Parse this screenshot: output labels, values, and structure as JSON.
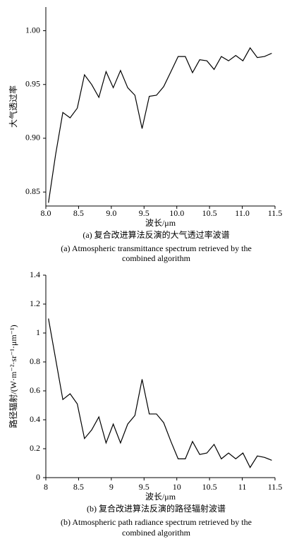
{
  "chart_data": [
    {
      "type": "line",
      "ylabel": "大气透过率",
      "xlabel": "波长/μm",
      "caption": [
        "(a) 复合改进算法反演的大气透过率波谱",
        "(a) Atmospheric transmittance spectrum retrieved by the",
        "combined algorithm"
      ],
      "xlim": [
        8,
        11.5
      ],
      "xticks": [
        {
          "value": 8,
          "label": "8.0"
        },
        8.5,
        {
          "value": 9,
          "label": "9.0"
        },
        9.5,
        {
          "value": 10,
          "label": "10.0"
        },
        10.5,
        {
          "value": 11,
          "label": "11.0"
        },
        11.5
      ],
      "ylim": [
        0.837,
        1.022
      ],
      "yticks": [
        0.85,
        {
          "value": 0.9,
          "label": "0.90"
        },
        0.95,
        {
          "value": 1,
          "label": "1.00"
        }
      ],
      "grid": false,
      "color": "#000000",
      "x": [
        8.04,
        8.15,
        8.26,
        8.37,
        8.48,
        8.59,
        8.7,
        8.81,
        8.92,
        9.03,
        9.14,
        9.25,
        9.36,
        9.47,
        9.58,
        9.69,
        9.8,
        9.91,
        10.02,
        10.13,
        10.24,
        10.35,
        10.46,
        10.57,
        10.68,
        10.79,
        10.9,
        11.01,
        11.12,
        11.23,
        11.34,
        11.45
      ],
      "values": [
        0.84,
        0.885,
        0.924,
        0.919,
        0.928,
        0.959,
        0.95,
        0.938,
        0.962,
        0.947,
        0.963,
        0.947,
        0.94,
        0.909,
        0.939,
        0.94,
        0.948,
        0.962,
        0.976,
        0.976,
        0.961,
        0.973,
        0.972,
        0.964,
        0.976,
        0.972,
        0.977,
        0.972,
        0.984,
        0.975,
        0.976,
        0.979
      ]
    },
    {
      "type": "line",
      "ylabel": "路径辐射/(W·m⁻²·sr⁻¹·μm⁻¹)",
      "xlabel": "波长/μm",
      "caption": [
        "(b) 复合改进算法反演的路径辐射波谱",
        "(b) Atmospheric path radiance spectrum retrieved by the",
        "combined algorithm"
      ],
      "xlim": [
        8,
        11.5
      ],
      "xticks": [
        8,
        8.5,
        9,
        9.5,
        10,
        10.5,
        11,
        11.5
      ],
      "ylim": [
        0,
        1.4
      ],
      "yticks": [
        0,
        0.2,
        0.4,
        0.6,
        0.8,
        1,
        1.2,
        1.4
      ],
      "grid": false,
      "color": "#000000",
      "x": [
        8.04,
        8.15,
        8.26,
        8.37,
        8.48,
        8.59,
        8.7,
        8.81,
        8.92,
        9.03,
        9.14,
        9.25,
        9.36,
        9.47,
        9.58,
        9.69,
        9.8,
        9.91,
        10.02,
        10.13,
        10.24,
        10.35,
        10.46,
        10.57,
        10.68,
        10.79,
        10.9,
        11.01,
        11.12,
        11.23,
        11.34,
        11.45
      ],
      "values": [
        1.1,
        0.82,
        0.54,
        0.58,
        0.51,
        0.27,
        0.33,
        0.42,
        0.24,
        0.37,
        0.24,
        0.37,
        0.43,
        0.68,
        0.44,
        0.44,
        0.38,
        0.25,
        0.13,
        0.13,
        0.25,
        0.16,
        0.17,
        0.23,
        0.13,
        0.17,
        0.13,
        0.17,
        0.07,
        0.15,
        0.14,
        0.12
      ]
    }
  ]
}
